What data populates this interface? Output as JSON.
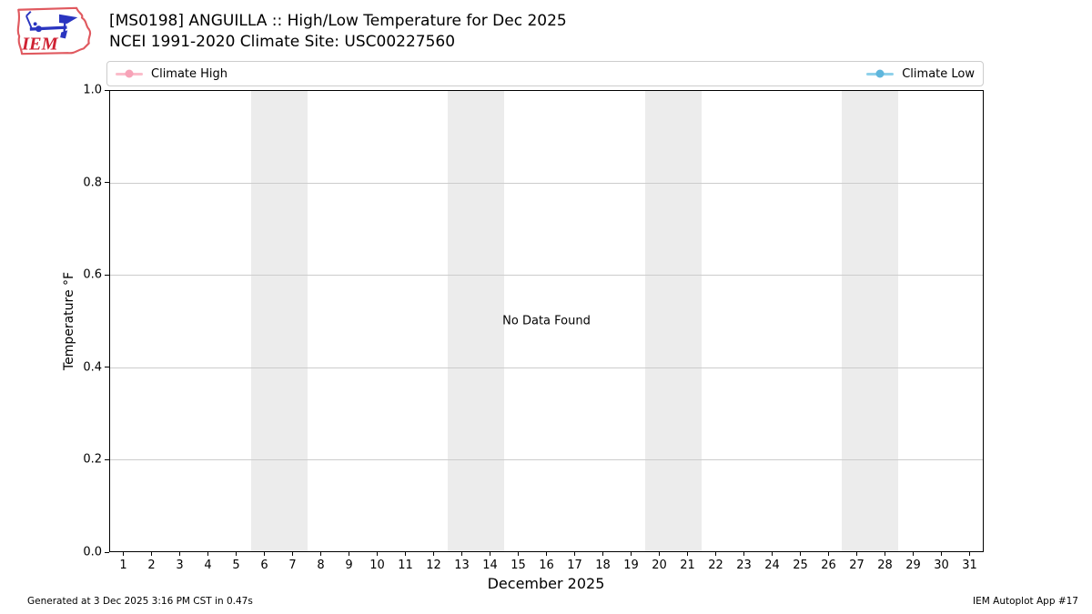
{
  "header": {
    "title_line1": "[MS0198] ANGUILLA :: High/Low Temperature for Dec 2025",
    "title_line2": "NCEI 1991-2020 Climate Site: USC00227560",
    "logo_text": "IEM"
  },
  "legend": [
    {
      "label": "Climate High",
      "line_color": "#fbbcca",
      "marker_color": "#f7a3b8"
    },
    {
      "label": "Climate Low",
      "line_color": "#8fd1ea",
      "marker_color": "#5fb6dc"
    }
  ],
  "chart_data": {
    "type": "line",
    "title": "[MS0198] ANGUILLA :: High/Low Temperature for Dec 2025",
    "subtitle": "NCEI 1991-2020 Climate Site: USC00227560",
    "xlabel": "December 2025",
    "ylabel": "Temperature °F",
    "no_data_text": "No Data Found",
    "xlim": [
      0.5,
      31.5
    ],
    "ylim": [
      0.0,
      1.0
    ],
    "x_ticks": [
      1,
      2,
      3,
      4,
      5,
      6,
      7,
      8,
      9,
      10,
      11,
      12,
      13,
      14,
      15,
      16,
      17,
      18,
      19,
      20,
      21,
      22,
      23,
      24,
      25,
      26,
      27,
      28,
      29,
      30,
      31
    ],
    "y_ticks": [
      0.0,
      0.2,
      0.4,
      0.6,
      0.8,
      1.0
    ],
    "grid": true,
    "grid_color": "#cccccc",
    "legend_position": "top",
    "series": [
      {
        "name": "Climate High",
        "color": "#f7a3b8",
        "values": []
      },
      {
        "name": "Climate Low",
        "color": "#5fb6dc",
        "values": []
      }
    ],
    "weekend_bands": [
      [
        5.5,
        7.5
      ],
      [
        12.5,
        14.5
      ],
      [
        19.5,
        21.5
      ],
      [
        26.5,
        28.5
      ]
    ],
    "band_color": "#ececec"
  },
  "footer": {
    "left": "Generated at 3 Dec 2025 3:16 PM CST in 0.47s",
    "right": "IEM Autoplot App #17"
  }
}
